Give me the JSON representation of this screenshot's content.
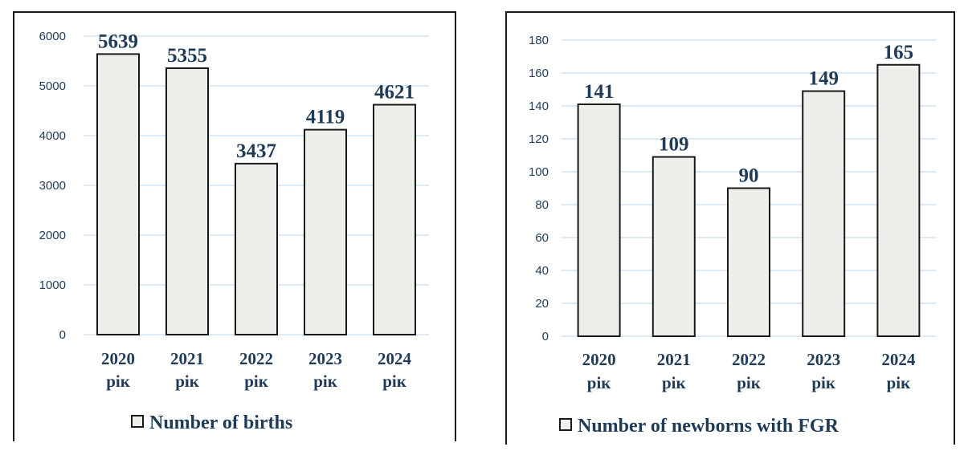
{
  "charts": [
    {
      "chart_data": {
        "type": "bar",
        "categories": [
          [
            "2020",
            "рік"
          ],
          [
            "2021",
            "рік"
          ],
          [
            "2022",
            "рік"
          ],
          [
            "2023",
            "рік"
          ],
          [
            "2024",
            "рік"
          ]
        ],
        "series": [
          {
            "name": "Number of births",
            "values": [
              5639,
              5355,
              3437,
              4119,
              4621
            ]
          }
        ],
        "ylim": [
          0,
          6000
        ],
        "yticks": [
          0,
          1000,
          2000,
          3000,
          4000,
          5000,
          6000
        ],
        "grid": true,
        "legend": "bottom",
        "data_labels": true
      },
      "colors": {
        "bar_fill": "#eeeeea",
        "bar_stroke": "#1a1a1a",
        "text": "#1f3b57",
        "grid": "#cfe3f1"
      }
    },
    {
      "chart_data": {
        "type": "bar",
        "categories": [
          [
            "2020",
            "рік"
          ],
          [
            "2021",
            "рік"
          ],
          [
            "2022",
            "рік"
          ],
          [
            "2023",
            "рік"
          ],
          [
            "2024",
            "рік"
          ]
        ],
        "series": [
          {
            "name": "Number of newborns with FGR",
            "values": [
              141,
              109,
              90,
              149,
              165
            ]
          }
        ],
        "ylim": [
          0,
          180
        ],
        "yticks": [
          0,
          20,
          40,
          60,
          80,
          100,
          120,
          140,
          160,
          180
        ],
        "grid": true,
        "legend": "bottom",
        "data_labels": true
      },
      "colors": {
        "bar_fill": "#eeeeea",
        "bar_stroke": "#1a1a1a",
        "text": "#1f3b57",
        "grid": "#cfe3f1"
      }
    }
  ]
}
